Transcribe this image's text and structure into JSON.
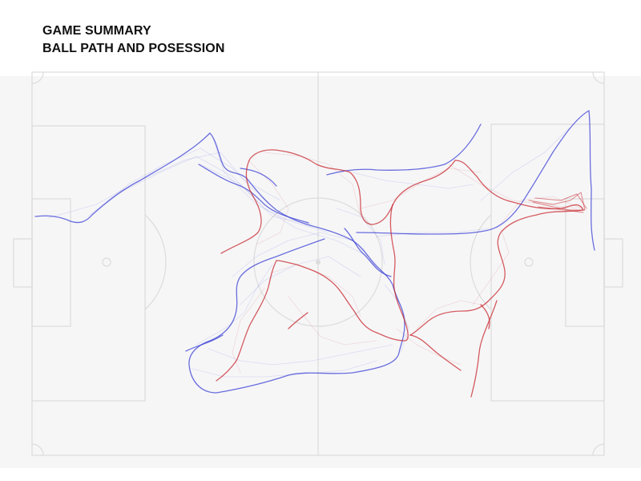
{
  "title": {
    "line1": "GAME SUMMARY",
    "line2": "BALL PATH AND POSESSION"
  },
  "colors": {
    "background": "#ffffff",
    "pitch_band": "#f6f6f7",
    "pitch_lines": "#dcdcdc",
    "team_blue": "#3a3fd4",
    "team_red": "#c8262c"
  }
}
